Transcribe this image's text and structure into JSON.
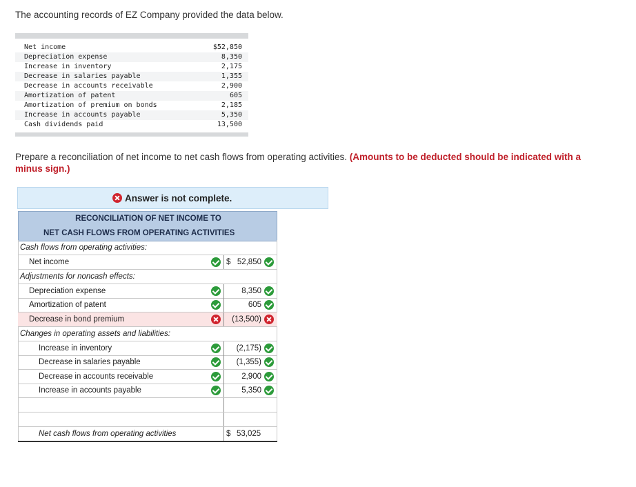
{
  "intro": "The accounting records of EZ Company provided the data below.",
  "data_items": [
    {
      "label": "Net income",
      "value": "$52,850"
    },
    {
      "label": "Depreciation expense",
      "value": "8,350"
    },
    {
      "label": "Increase in inventory",
      "value": "2,175"
    },
    {
      "label": "Decrease in salaries payable",
      "value": "1,355"
    },
    {
      "label": "Decrease in accounts receivable",
      "value": "2,900"
    },
    {
      "label": "Amortization of patent",
      "value": "605"
    },
    {
      "label": "Amortization of premium on bonds",
      "value": "2,185"
    },
    {
      "label": "Increase in accounts payable",
      "value": "5,350"
    },
    {
      "label": "Cash dividends paid",
      "value": "13,500"
    }
  ],
  "prompt": {
    "text": "Prepare a reconciliation of net income to net cash flows from operating activities. ",
    "emphasis": "(Amounts to be deducted should be indicated with a minus sign.)"
  },
  "status": {
    "text": "Answer is not complete.",
    "icon": "x-circle-icon"
  },
  "table": {
    "title_line1": "RECONCILIATION OF NET INCOME TO",
    "title_line2": "NET CASH FLOWS FROM OPERATING ACTIVITIES",
    "section_operating": "Cash flows from operating activities:",
    "net_income": {
      "label": "Net income",
      "dollar": "$",
      "value": "52,850",
      "status": "correct"
    },
    "section_noncash": "Adjustments for noncash effects:",
    "noncash": [
      {
        "label": "Depreciation expense",
        "value": "8,350",
        "status": "correct"
      },
      {
        "label": "Amortization of patent",
        "value": "605",
        "status": "correct"
      },
      {
        "label": "Decrease in bond premium",
        "value": "(13,500)",
        "status": "incorrect"
      }
    ],
    "section_changes": "Changes in operating assets and liabilities:",
    "changes": [
      {
        "label": "Increase in inventory",
        "value": "(2,175)",
        "status": "correct"
      },
      {
        "label": "Decrease in salaries payable",
        "value": "(1,355)",
        "status": "correct"
      },
      {
        "label": "Decrease in accounts receivable",
        "value": "2,900",
        "status": "correct"
      },
      {
        "label": "Increase in accounts payable",
        "value": "5,350",
        "status": "correct"
      }
    ],
    "total": {
      "label": "Net cash flows from operating activities",
      "dollar": "$",
      "value": "53,025"
    }
  },
  "colors": {
    "correct": "#2c9b3a",
    "incorrect": "#d0242e",
    "header_bg": "#b8cce4",
    "status_bg": "#ddeefa",
    "emphasis": "#c0202a"
  }
}
